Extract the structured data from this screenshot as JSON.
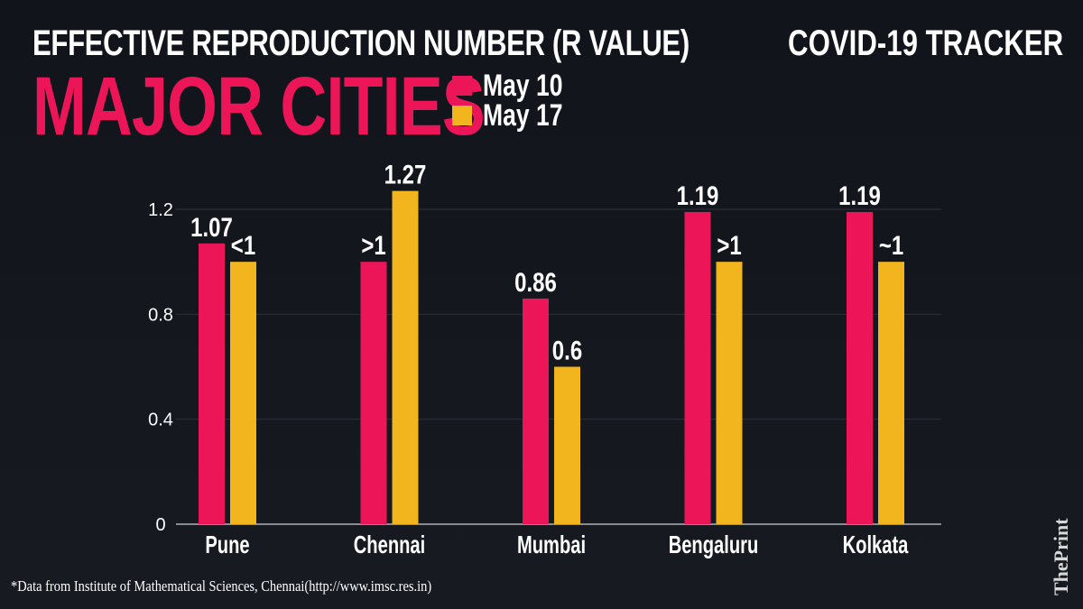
{
  "header": {
    "subtitle": "EFFECTIVE REPRODUCTION NUMBER (R VALUE)",
    "title": "MAJOR CITIES",
    "tracker": "COVID-19 TRACKER"
  },
  "footer": {
    "source": "*Data from Institute of Mathematical Sciences, Chennai(http://www.imsc.res.in)",
    "brand": "ThePrint"
  },
  "chart_data": {
    "type": "bar",
    "title": "MAJOR CITIES",
    "categories": [
      "Pune",
      "Chennai",
      "Mumbai",
      "Bengaluru",
      "Kolkata"
    ],
    "series": [
      {
        "name": "May 10",
        "color": "#ec1558",
        "values": [
          1.07,
          1.0,
          0.86,
          1.19,
          1.19
        ],
        "labels": [
          "1.07",
          ">1",
          "0.86",
          "1.19",
          "1.19"
        ]
      },
      {
        "name": "May 17",
        "color": "#f2b51d",
        "values": [
          1.0,
          1.27,
          0.6,
          1.0,
          1.0
        ],
        "labels": [
          "<1",
          "1.27",
          "0.6",
          ">1",
          "~1"
        ]
      }
    ],
    "ylim": [
      0,
      1.2
    ],
    "yticks": [
      "0",
      "0.4",
      "0.8",
      "1.2"
    ],
    "ytick_values": [
      0,
      0.4,
      0.8,
      1.2
    ],
    "grid": true,
    "legend": "top-left"
  }
}
